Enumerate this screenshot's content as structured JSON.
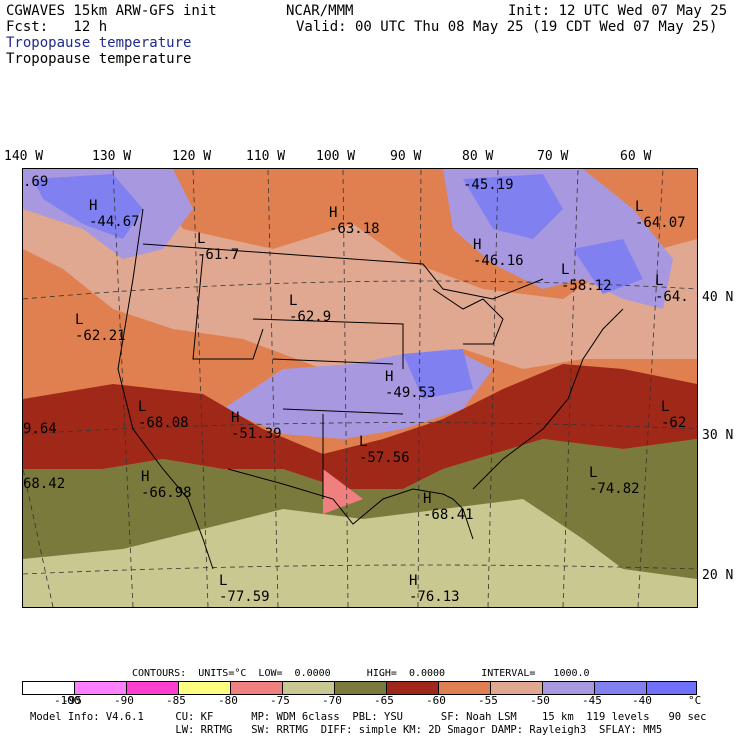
{
  "header": {
    "line1_left": "CGWAVES 15km ARW-GFS init",
    "line1_mid": "NCAR/MMM",
    "line1_right": "Init: 12 UTC Wed 07 May 25",
    "line2_left": "Fcst:   12 h",
    "line2_right": "Valid: 00 UTC Thu 08 May 25 (19 CDT Wed 07 May 25)",
    "field_title_1": "Tropopause temperature",
    "field_title_2": "Tropopause temperature"
  },
  "longitude_labels": [
    "140 W",
    "130 W",
    "120 W",
    "110 W",
    "100 W",
    "90 W",
    "80 W",
    "70 W",
    "60 W"
  ],
  "latitude_labels": [
    "40 N",
    "30 N",
    "20 N"
  ],
  "map_labels": [
    {
      "hl": "H",
      "val": "-44.67"
    },
    {
      "hl": "L",
      "val": "-61.7"
    },
    {
      "hl": "H",
      "val": "-63.18"
    },
    {
      "hl": "H",
      "val": "-45.19"
    },
    {
      "hl": "H",
      "val": "-46.16"
    },
    {
      "hl": "L",
      "val": "-64.07"
    },
    {
      "hl": "L",
      "val": "-58.12"
    },
    {
      "hl": "L",
      "val": "-64."
    },
    {
      "hl": "L",
      "val": "-62.9"
    },
    {
      "hl": "L",
      "val": "-62.21"
    },
    {
      "hl": "H",
      "val": "-49.53"
    },
    {
      "hl": "L",
      "val": "-68.08"
    },
    {
      "hl": "H",
      "val": "-51.39"
    },
    {
      "hl": "L",
      "val": "-57.56"
    },
    {
      "hl": "L",
      "val": "-62"
    },
    {
      "hl": "H",
      "val": "-66.98"
    },
    {
      "hl": "L",
      "val": "-74.82"
    },
    {
      "hl": "H",
      "val": "-68.41"
    },
    {
      "hl": "L",
      "val": "-77.59"
    },
    {
      "hl": "H",
      "val": "-76.13"
    },
    {
      "hl": "",
      "val": ".69"
    },
    {
      "hl": "",
      "val": "9.64"
    },
    {
      "hl": "",
      "val": "68.42"
    }
  ],
  "contours": {
    "text": "CONTOURS:  UNITS=°C  LOW=  0.0000      HIGH=  0.0000      INTERVAL=   1000.0"
  },
  "colorbar": {
    "colors": [
      "#ffffff",
      "#ff80ff",
      "#ff40d0",
      "#ffff80",
      "#f08080",
      "#c8c890",
      "#7a7a3c",
      "#a02818",
      "#e08050",
      "#e0a890",
      "#a898e0",
      "#8080f0",
      "#7070ff"
    ],
    "ticks": [
      "-100",
      "-95",
      "-90",
      "-85",
      "-80",
      "-75",
      "-70",
      "-65",
      "-60",
      "-55",
      "-50",
      "-45",
      "-40"
    ],
    "unit": "°C"
  },
  "footer": {
    "line1": "Model Info: V4.6.1     CU: KF      MP: WDM 6class  PBL: YSU      SF: Noah LSM    15 km  119 levels   90 sec",
    "line2": "                       LW: RRTMG   SW: RRTMG  DIFF: simple KM: 2D Smagor DAMP: Rayleigh3  SFLAY: MM5"
  }
}
